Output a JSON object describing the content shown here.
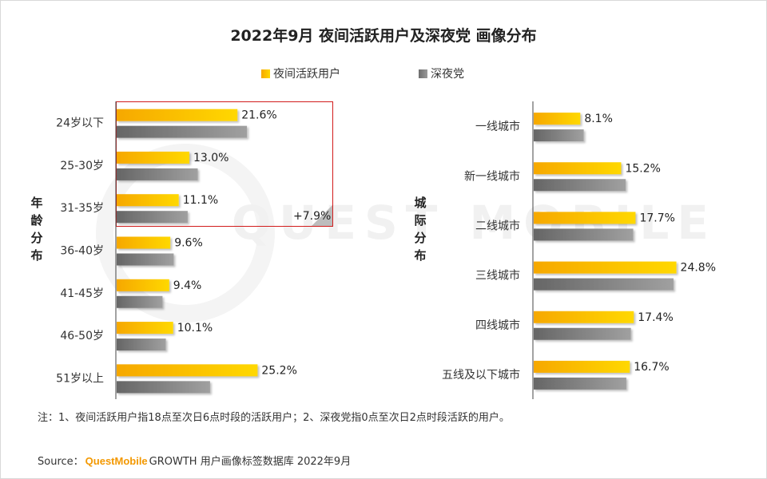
{
  "title": "2022年9月 夜间活跃用户及深夜党 画像分布",
  "legend": {
    "series_a": "夜间活跃用户",
    "series_b": "深夜党"
  },
  "watermark": "QUEST MOBILE",
  "colors": {
    "series_a_start": "#f6a800",
    "series_a_end": "#ffd800",
    "series_b_start": "#6e6e6e",
    "series_b_end": "#9a9a9a",
    "highlight_border": "#d21c1c"
  },
  "highlight": {
    "label": "+7.9%"
  },
  "note": "注：1、夜间活跃用户指18点至次日6点时段的活跃用户；2、深夜党指0点至次日2点时段活跃的用户。",
  "source": {
    "prefix": "Source：",
    "brand": "QuestMobile",
    "rest": "GROWTH 用户画像标签数据库 2022年9月"
  },
  "chart_data": [
    {
      "type": "bar",
      "orientation": "horizontal",
      "group_label": "年龄分布",
      "categories": [
        "24岁以下",
        "25-30岁",
        "31-35岁",
        "36-40岁",
        "41-45岁",
        "46-50岁",
        "51岁以上"
      ],
      "series": [
        {
          "name": "夜间活跃用户",
          "values": [
            21.6,
            13.0,
            11.1,
            9.6,
            9.4,
            10.1,
            25.2
          ],
          "labels": [
            "21.6%",
            "13.0%",
            "11.1%",
            "9.6%",
            "9.4%",
            "10.1%",
            "25.2%"
          ]
        },
        {
          "name": "深夜党",
          "values": [
            23.3,
            14.5,
            12.7,
            10.2,
            8.2,
            8.8,
            16.7
          ]
        }
      ],
      "xlim": [
        0,
        30
      ]
    },
    {
      "type": "bar",
      "orientation": "horizontal",
      "group_label": "城际分布",
      "categories": [
        "一线城市",
        "新一线城市",
        "二线城市",
        "三线城市",
        "四线城市",
        "五线及以下城市"
      ],
      "series": [
        {
          "name": "夜间活跃用户",
          "values": [
            8.1,
            15.2,
            17.7,
            24.8,
            17.4,
            16.7
          ],
          "labels": [
            "8.1%",
            "15.2%",
            "17.7%",
            "24.8%",
            "17.4%",
            "16.7%"
          ]
        },
        {
          "name": "深夜党",
          "values": [
            8.7,
            16.0,
            17.3,
            24.3,
            16.9,
            16.1
          ]
        }
      ],
      "xlim": [
        0,
        30
      ]
    }
  ]
}
